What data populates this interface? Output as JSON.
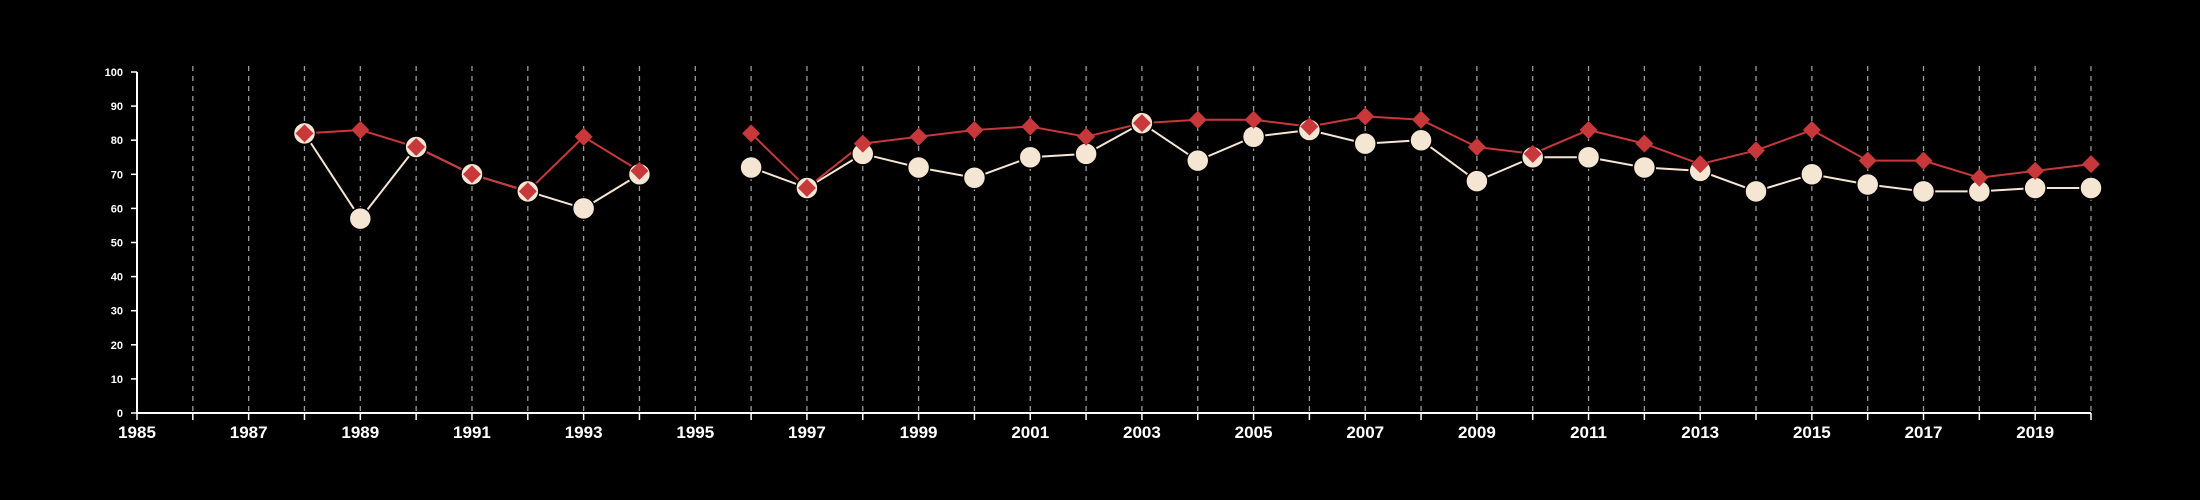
{
  "chart_data": {
    "type": "line",
    "title": "",
    "xlabel": "",
    "ylabel": "",
    "xlim": [
      1985,
      2020
    ],
    "ylim": [
      0,
      100
    ],
    "x_ticks": [
      "1985",
      "1987",
      "1989",
      "1991",
      "1993",
      "1995",
      "1997",
      "1999",
      "2001",
      "2003",
      "2005",
      "2007",
      "2009",
      "2011",
      "2013",
      "2015",
      "2017",
      "2019"
    ],
    "y_ticks": [
      "0",
      "10",
      "20",
      "30",
      "40",
      "50",
      "60",
      "70",
      "80",
      "90",
      "100"
    ],
    "grid": "vertical dashed lines at every year",
    "background_color": "#000000",
    "series": [
      {
        "color": "#c8383a",
        "marker": "diamond",
        "x": [
          1988,
          1989,
          1990,
          1991,
          1992,
          1993,
          1994,
          null,
          1996,
          1997,
          1998,
          1999,
          2000,
          2001,
          2002,
          2003,
          2004,
          2005,
          2006,
          2007,
          2008,
          2009,
          2010,
          2011,
          2012,
          2013,
          2014,
          2015,
          2016,
          2017,
          2018,
          2019,
          2020
        ],
        "values": [
          82,
          83,
          78,
          70,
          65,
          81,
          71,
          null,
          82,
          66,
          79,
          81,
          83,
          84,
          81,
          85,
          86,
          86,
          84,
          87,
          86,
          78,
          76,
          83,
          79,
          73,
          77,
          83,
          74,
          74,
          69,
          71,
          73
        ]
      },
      {
        "color": "#f5e6d3",
        "marker": "circle",
        "x": [
          1988,
          1989,
          1990,
          1991,
          1992,
          1993,
          1994,
          null,
          1996,
          1997,
          1998,
          1999,
          2000,
          2001,
          2002,
          2003,
          2004,
          2005,
          2006,
          2007,
          2008,
          2009,
          2010,
          2011,
          2012,
          2013,
          2014,
          2015,
          2016,
          2017,
          2018,
          2019,
          2020
        ],
        "values": [
          82,
          57,
          78,
          70,
          65,
          60,
          70,
          null,
          72,
          66,
          76,
          72,
          69,
          75,
          76,
          85,
          74,
          81,
          83,
          79,
          80,
          68,
          75,
          75,
          72,
          71,
          65,
          70,
          67,
          65,
          65,
          66,
          66
        ]
      }
    ]
  }
}
